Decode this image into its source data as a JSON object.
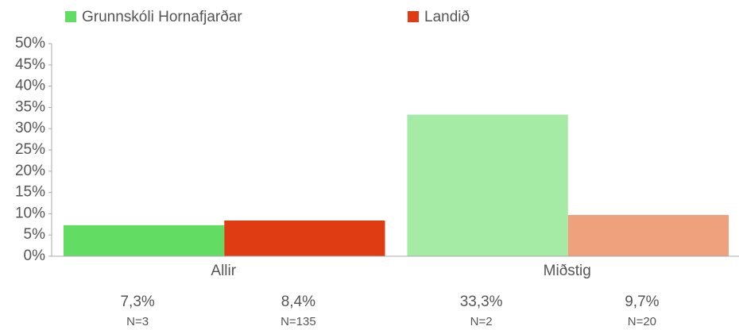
{
  "chart_data": {
    "type": "bar",
    "categories": [
      "Allir",
      "Miðstig"
    ],
    "series": [
      {
        "name": "Grunnskóli Hornafjarðar",
        "color": "#62dc62",
        "colors": [
          "#62dc62",
          "#a5eaa5"
        ],
        "values": [
          7.3,
          33.3
        ],
        "value_labels": [
          "7,3%",
          "33,3%"
        ],
        "n_labels": [
          "N=3",
          "N=2"
        ]
      },
      {
        "name": "Landið",
        "color": "#e03c14",
        "colors": [
          "#e03c14",
          "#efa07c"
        ],
        "values": [
          8.4,
          9.7
        ],
        "value_labels": [
          "8,4%",
          "9,7%"
        ],
        "n_labels": [
          "N=135",
          "N=20"
        ]
      }
    ],
    "ylim": [
      0,
      50
    ],
    "yticks": [
      {
        "value": 0,
        "label": "0%"
      },
      {
        "value": 5,
        "label": "5%"
      },
      {
        "value": 10,
        "label": "10%"
      },
      {
        "value": 15,
        "label": "15%"
      },
      {
        "value": 20,
        "label": "20%"
      },
      {
        "value": 25,
        "label": "25%"
      },
      {
        "value": 30,
        "label": "30%"
      },
      {
        "value": 35,
        "label": "35%"
      },
      {
        "value": 40,
        "label": "40%"
      },
      {
        "value": 45,
        "label": "45%"
      },
      {
        "value": 50,
        "label": "50%"
      }
    ]
  }
}
